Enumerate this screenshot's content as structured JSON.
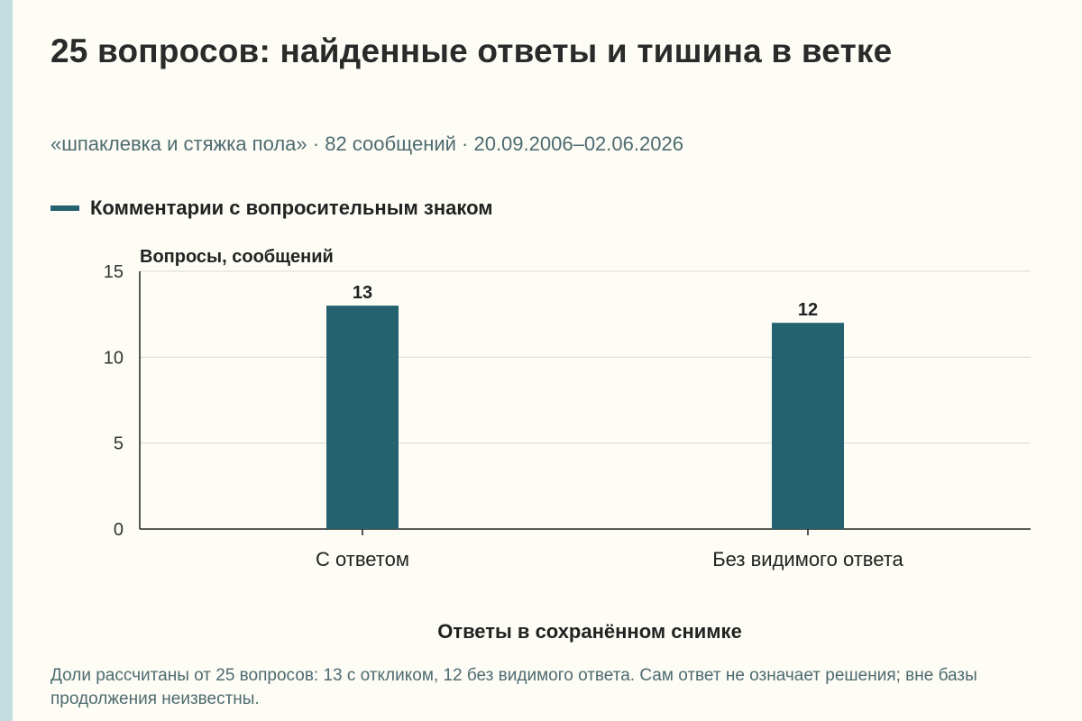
{
  "title": "25 вопросов: найденные ответы и тишина в ветке",
  "subtitle": "«шпаклевка и стяжка пола» · 82 сообщений · 20.09.2006–02.06.2026",
  "note": "Доли рассчитаны от 25 вопросов: 13 с откликом, 12 без видимого ответа. Сам ответ не означает решения; вне базы продолжения неизвестны.",
  "colors": {
    "bar": "#256270",
    "grid": "#d9d9d3",
    "axis": "#222222",
    "background": "#fdfcf5"
  },
  "chart_data": {
    "type": "bar",
    "categories": [
      "С ответом",
      "Без видимого ответа"
    ],
    "series": [
      {
        "name": "Комментарии с вопросительным знаком",
        "values": [
          13,
          12
        ]
      }
    ],
    "xlabel": "Ответы в сохранённом снимке",
    "ylabel": "Вопросы, сообщений",
    "ylim": [
      0,
      15
    ],
    "yticks": [
      0,
      5,
      10,
      15
    ],
    "data_labels": [
      "13",
      "12"
    ],
    "grid": true,
    "legend": "top-left"
  }
}
